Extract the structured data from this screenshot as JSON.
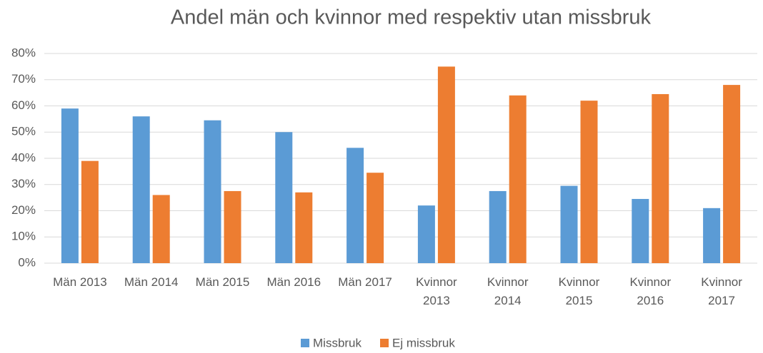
{
  "chart_data": {
    "type": "bar",
    "title": "Andel män och kvinnor med respektiv utan missbruk",
    "categories": [
      "Män 2013",
      "Män 2014",
      "Män 2015",
      "Män 2016",
      "Män 2017",
      "Kvinnor 2013",
      "Kvinnor 2014",
      "Kvinnor 2015",
      "Kvinnor 2016",
      "Kvinnor 2017"
    ],
    "series": [
      {
        "name": "Missbruk",
        "color": "#5b9bd5",
        "values": [
          59,
          56,
          54.5,
          50,
          44,
          22,
          27.5,
          29.5,
          24.5,
          21
        ]
      },
      {
        "name": "Ej missbruk",
        "color": "#ed7d31",
        "values": [
          39,
          26,
          27.5,
          27,
          34.5,
          75,
          64,
          62,
          64.5,
          68
        ]
      }
    ],
    "ylim": [
      0,
      80
    ],
    "yticks": [
      {
        "value": 0,
        "label": "0%"
      },
      {
        "value": 10,
        "label": "10%"
      },
      {
        "value": 20,
        "label": "20%"
      },
      {
        "value": 30,
        "label": "30%"
      },
      {
        "value": 40,
        "label": "40%"
      },
      {
        "value": 50,
        "label": "50%"
      },
      {
        "value": 60,
        "label": "60%"
      },
      {
        "value": 70,
        "label": "70%"
      },
      {
        "value": 80,
        "label": "80%"
      }
    ],
    "grid": true,
    "legend": "bottom"
  }
}
